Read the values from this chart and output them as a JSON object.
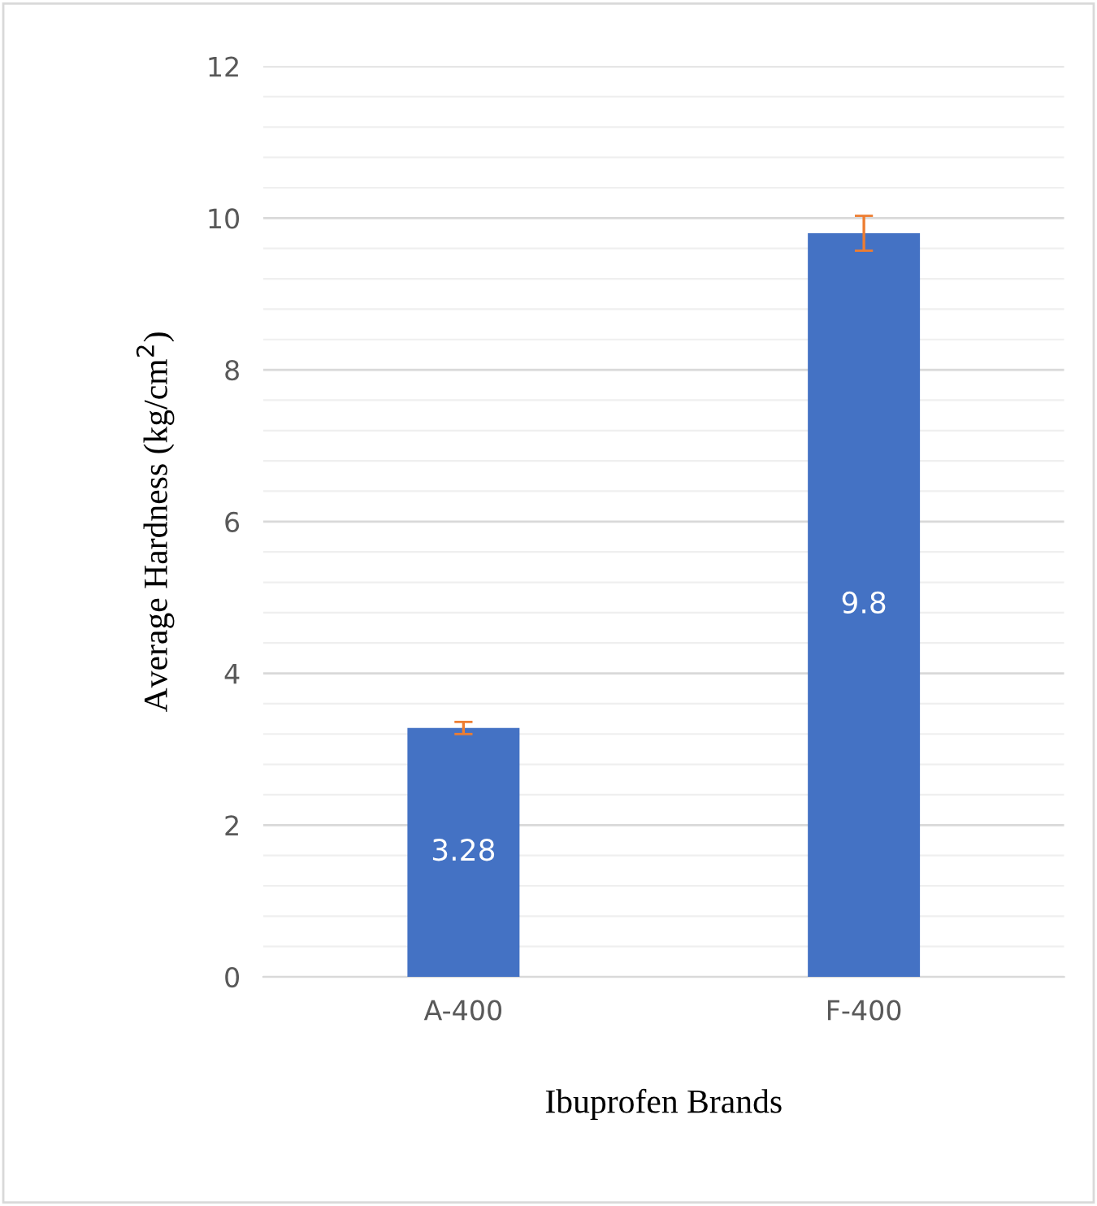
{
  "chart_data": {
    "type": "bar",
    "xlabel": "Ibuprofen Brands",
    "ylabel": "Average Hardness (kg/cm$^{2}$)",
    "categories": [
      "A-400",
      "F-400"
    ],
    "values": [
      3.28,
      9.8
    ],
    "errors": [
      0.08,
      0.23
    ],
    "color": "#4472c4",
    "data_labels": true,
    "ylim": [
      0,
      12
    ],
    "yticks": [
      0,
      2,
      4,
      6,
      8,
      10,
      12
    ],
    "grid": "y"
  }
}
